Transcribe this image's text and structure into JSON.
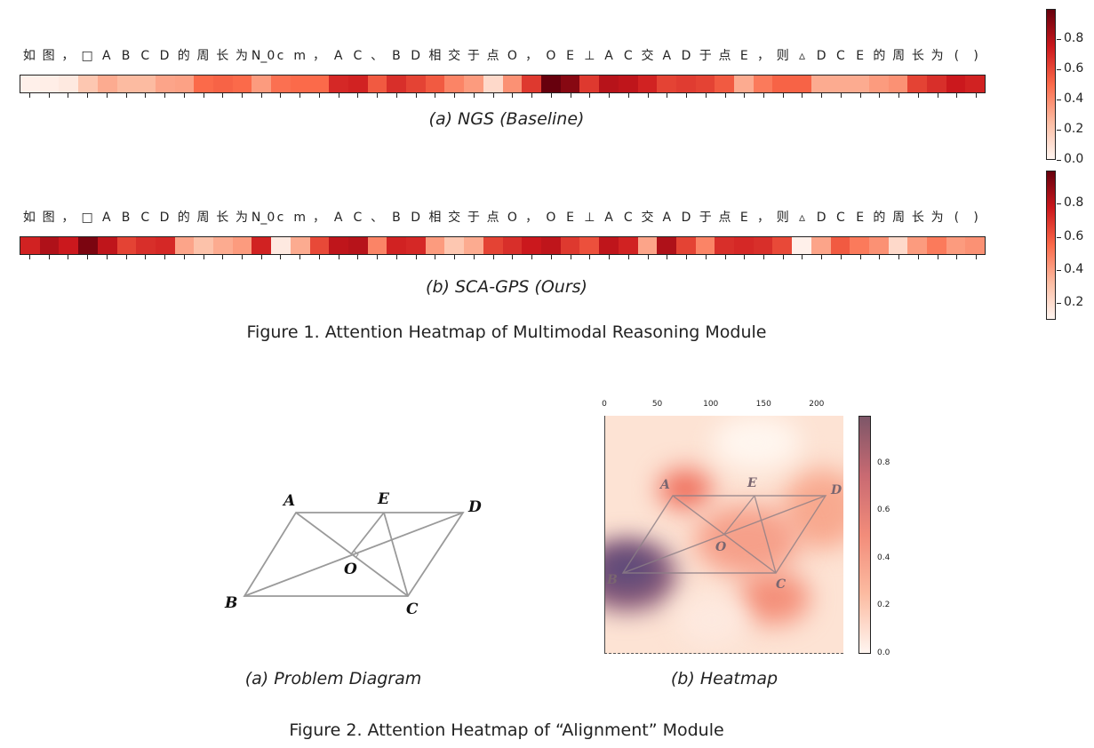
{
  "figure1": {
    "tokens": [
      "如",
      "图",
      "，",
      "□",
      "A",
      "B",
      "C",
      "D",
      "的",
      "周",
      "长",
      "为",
      "N_0",
      "c",
      "m",
      "，",
      "A",
      "C",
      "、",
      "B",
      "D",
      "相",
      "交",
      "于",
      "点",
      "O",
      "，",
      "O",
      "E",
      "⊥",
      "A",
      "C",
      "交",
      "A",
      "D",
      "于",
      "点",
      "E",
      "，",
      "则",
      "▵",
      "D",
      "C",
      "E",
      "的",
      "周",
      "长",
      "为",
      "(",
      ")"
    ],
    "panel_a": {
      "caption": "(a) NGS (Baseline)",
      "weights": [
        0.02,
        0.03,
        0.05,
        0.2,
        0.3,
        0.25,
        0.25,
        0.32,
        0.33,
        0.5,
        0.52,
        0.5,
        0.35,
        0.48,
        0.5,
        0.5,
        0.7,
        0.72,
        0.55,
        0.68,
        0.62,
        0.55,
        0.42,
        0.35,
        0.12,
        0.38,
        0.65,
        1.0,
        0.92,
        0.65,
        0.8,
        0.78,
        0.72,
        0.62,
        0.64,
        0.62,
        0.55,
        0.3,
        0.45,
        0.52,
        0.52,
        0.3,
        0.3,
        0.3,
        0.35,
        0.38,
        0.62,
        0.68,
        0.75,
        0.72
      ]
    },
    "panel_b": {
      "caption": "(b) SCA-GPS (Ours)",
      "weights": [
        0.72,
        0.82,
        0.75,
        0.95,
        0.78,
        0.62,
        0.68,
        0.7,
        0.32,
        0.22,
        0.3,
        0.35,
        0.72,
        0.05,
        0.3,
        0.6,
        0.78,
        0.8,
        0.42,
        0.72,
        0.7,
        0.35,
        0.2,
        0.3,
        0.62,
        0.68,
        0.75,
        0.78,
        0.65,
        0.58,
        0.78,
        0.72,
        0.32,
        0.82,
        0.62,
        0.42,
        0.68,
        0.7,
        0.68,
        0.6,
        0.02,
        0.32,
        0.55,
        0.45,
        0.38,
        0.12,
        0.35,
        0.45,
        0.35,
        0.38
      ]
    },
    "colorbar_a_ticks": [
      "0.0",
      "0.2",
      "0.4",
      "0.6",
      "0.8"
    ],
    "colorbar_b_ticks": [
      "0.2",
      "0.4",
      "0.6",
      "0.8"
    ],
    "caption": "Figure 1. Attention Heatmap of Multimodal Reasoning Module"
  },
  "figure2": {
    "diagram_caption": "(a) Problem Diagram",
    "heatmap_caption": "(b) Heatmap",
    "points": {
      "A": "A",
      "B": "B",
      "C": "C",
      "D": "D",
      "E": "E",
      "O": "O"
    },
    "x_ticks": [
      "0",
      "50",
      "100",
      "150",
      "200"
    ],
    "colorbar_ticks": [
      "0.8",
      "0.6",
      "0.4",
      "0.2",
      "0.0"
    ],
    "caption": "Figure 2. Attention Heatmap of  “Alignment”  Module"
  },
  "colors": {
    "cmap_low": "#fff5f0",
    "cmap_mid": "#fb6a4a",
    "cmap_high": "#67000d"
  }
}
